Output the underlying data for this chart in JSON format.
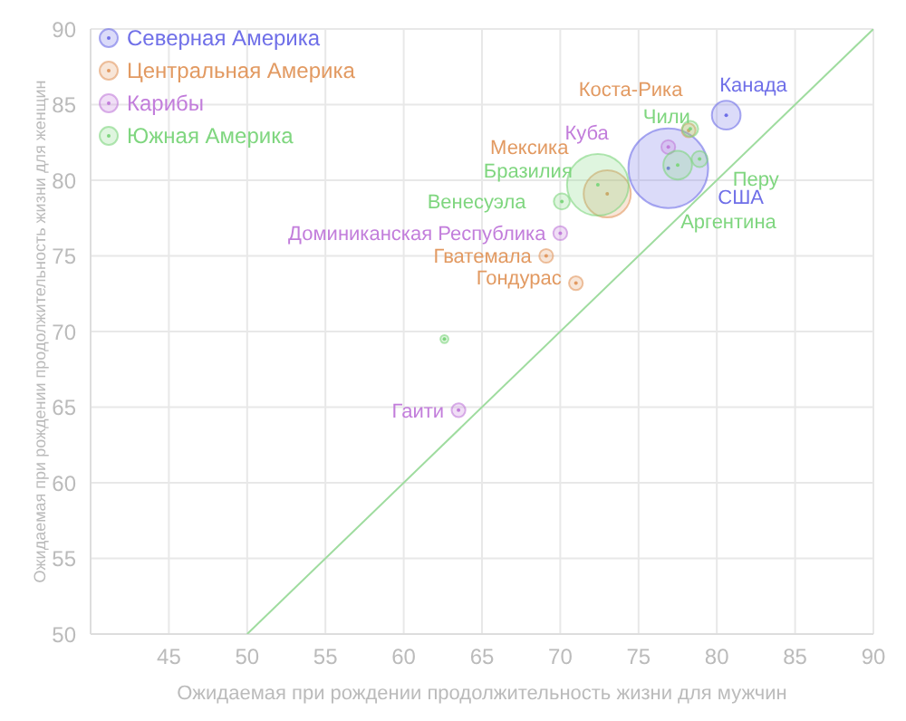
{
  "chart_data": {
    "type": "bubble",
    "xlabel": "Ожидаемая при рождении продолжительность жизни для мужчин",
    "ylabel": "Ожидаемая при рождении продолжительность жизни для женщин",
    "xlim": [
      40,
      90
    ],
    "xticks": [
      45,
      50,
      55,
      60,
      65,
      70,
      75,
      80,
      85,
      90
    ],
    "ylim": [
      50,
      90
    ],
    "yticks": [
      50,
      55,
      60,
      65,
      70,
      75,
      80,
      85,
      90
    ],
    "grid": true,
    "legend": "top left",
    "series": [
      {
        "name": "Северная Америка",
        "color": "#6f6fe8",
        "x": [
          80.6,
          76.9
        ],
        "values": [
          84.3,
          80.8
        ],
        "sizes": [
          0.13,
          1
        ]
      },
      {
        "name": "Центральная Америка",
        "color": "#e29a62",
        "x": [
          73.0,
          78.2,
          69.1,
          71.0
        ],
        "values": [
          79.1,
          83.3,
          75.0,
          73.2
        ],
        "sizes": [
          0.35,
          0.03,
          0.03,
          0.03
        ]
      },
      {
        "name": "Карибы",
        "color": "#c27ddb",
        "x": [
          76.9,
          70.0,
          63.5
        ],
        "values": [
          82.2,
          76.5,
          64.8
        ],
        "sizes": [
          0.03,
          0.03,
          0.03
        ]
      },
      {
        "name": "Южная Америка",
        "color": "#7fd67f",
        "x": [
          72.4,
          78.3,
          78.9,
          77.5,
          70.1,
          62.6
        ],
        "values": [
          79.7,
          83.4,
          81.4,
          81.0,
          78.6,
          69.5
        ],
        "sizes": [
          0.6,
          0.04,
          0.04,
          0.13,
          0.04,
          0.01
        ]
      },
      {
        "type": "line",
        "color": "#9fdc9f",
        "x": [
          50,
          90
        ],
        "values": [
          50,
          90
        ]
      }
    ],
    "annotations": [
      {
        "text": "Канада",
        "x": 80.6,
        "y": 84.3
      },
      {
        "text": "Коста-Рика",
        "x": 78.2,
        "y": 83.3
      },
      {
        "text": "Чили",
        "x": 78.3,
        "y": 83.4
      },
      {
        "text": "Куба",
        "x": 76.9,
        "y": 82.2
      },
      {
        "text": "Мексика",
        "x": 73.0,
        "y": 79.1
      },
      {
        "text": "Бразилия",
        "x": 72.4,
        "y": 79.7
      },
      {
        "text": "Перу",
        "x": 78.9,
        "y": 81.4
      },
      {
        "text": "США",
        "x": 76.9,
        "y": 80.8
      },
      {
        "text": "Венесуэла",
        "x": 70.1,
        "y": 78.6
      },
      {
        "text": "Аргентина",
        "x": 77.5,
        "y": 81.0
      },
      {
        "text": "Доминиканская Республика",
        "x": 70.0,
        "y": 76.5
      },
      {
        "text": "Гватемала",
        "x": 69.1,
        "y": 75.0
      },
      {
        "text": "Гондурас",
        "x": 71.0,
        "y": 73.2
      },
      {
        "text": "Гаити",
        "x": 63.5,
        "y": 64.8
      }
    ]
  }
}
